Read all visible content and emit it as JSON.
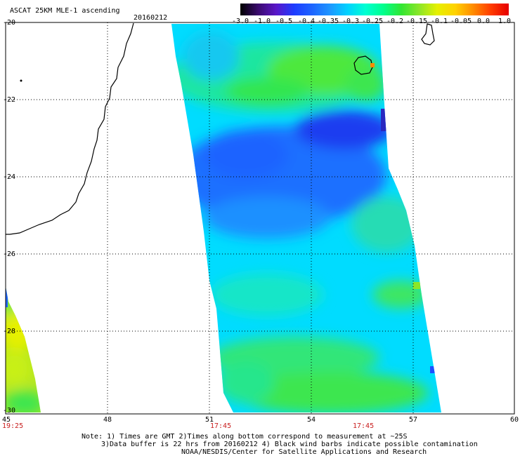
{
  "header": {
    "product": "ASCAT 25KM MLE-1 ascending",
    "date": "20160212"
  },
  "colorbar": {
    "tick_labels": [
      "-3.0",
      "-1.0",
      "-0.5",
      "-0.4",
      "-0.35",
      "-0.3",
      "-0.25",
      "-0.2",
      "-0.15",
      "-0.1",
      "-0.05",
      "0.0",
      "1.0"
    ],
    "gradient_colors": [
      "#000000",
      "#3a0a6e",
      "#5a16c8",
      "#1e3cff",
      "#1e64ff",
      "#1e96ff",
      "#00d2ff",
      "#00ffd2",
      "#00ff8c",
      "#32e632",
      "#8ce628",
      "#e6f000",
      "#ffd200",
      "#ff8c00",
      "#ff3c00",
      "#e60000"
    ]
  },
  "axes": {
    "y_labels": [
      "-20",
      "-22",
      "-24",
      "-26",
      "-28",
      "-30"
    ],
    "x_labels": [
      "45",
      "48",
      "51",
      "54",
      "57",
      "60"
    ]
  },
  "pass_times": [
    "19:25",
    "17:45",
    "17:45"
  ],
  "notes": {
    "line1": "Note: 1) Times are GMT 2)Times along bottom correspond to measurement at ~25S",
    "line2": "3)Data buffer is 22 hrs from 20160212 4) Black wind barbs indicate possible contamination",
    "line3": "NOAA/NESDIS/Center for Satellite Applications and Research"
  }
}
